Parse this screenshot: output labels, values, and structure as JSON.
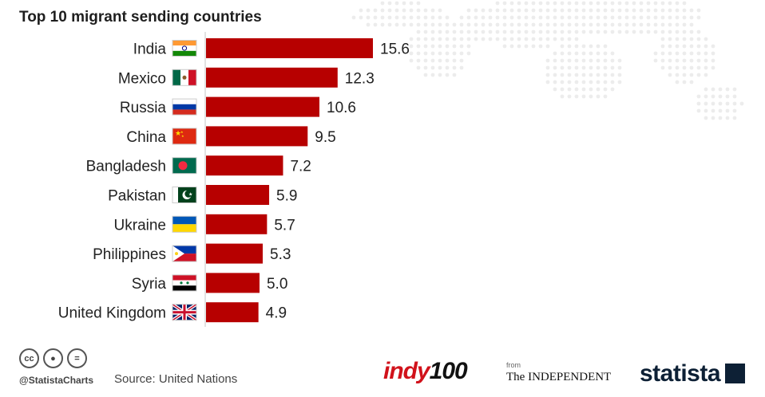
{
  "title": "Top 10 migrant sending countries",
  "chart_data": {
    "type": "bar",
    "orientation": "horizontal",
    "title": "Top 10 migrant sending countries",
    "xlabel": "",
    "ylabel": "",
    "xlim": [
      0,
      16
    ],
    "bar_color": "#b70000",
    "categories": [
      "India",
      "Mexico",
      "Russia",
      "China",
      "Bangladesh",
      "Pakistan",
      "Ukraine",
      "Philippines",
      "Syria",
      "United Kingdom"
    ],
    "values": [
      15.6,
      12.3,
      10.6,
      9.5,
      7.2,
      5.9,
      5.7,
      5.3,
      5.0,
      4.9
    ],
    "value_labels": [
      "15.6",
      "12.3",
      "10.6",
      "9.5",
      "7.2",
      "5.9",
      "5.7",
      "5.3",
      "5.0",
      "4.9"
    ],
    "flags": [
      "india-flag-icon",
      "mexico-flag-icon",
      "russia-flag-icon",
      "china-flag-icon",
      "bangladesh-flag-icon",
      "pakistan-flag-icon",
      "ukraine-flag-icon",
      "philippines-flag-icon",
      "syria-flag-icon",
      "uk-flag-icon"
    ]
  },
  "footer": {
    "cc_icons": [
      "cc",
      "by",
      "nd"
    ],
    "cc_icon_names": [
      "cc-icon",
      "attribution-icon",
      "no-derivatives-icon"
    ],
    "handle": "@StatistaCharts",
    "source": "Source: United Nations",
    "indy_part1": "indy",
    "indy_part2": "100",
    "from_text": "from",
    "independent": "The INDEPENDENT",
    "statista": "statista"
  },
  "colors": {
    "bar": "#b70000",
    "brand_dark": "#0d2035",
    "indy_red": "#d1121b"
  }
}
